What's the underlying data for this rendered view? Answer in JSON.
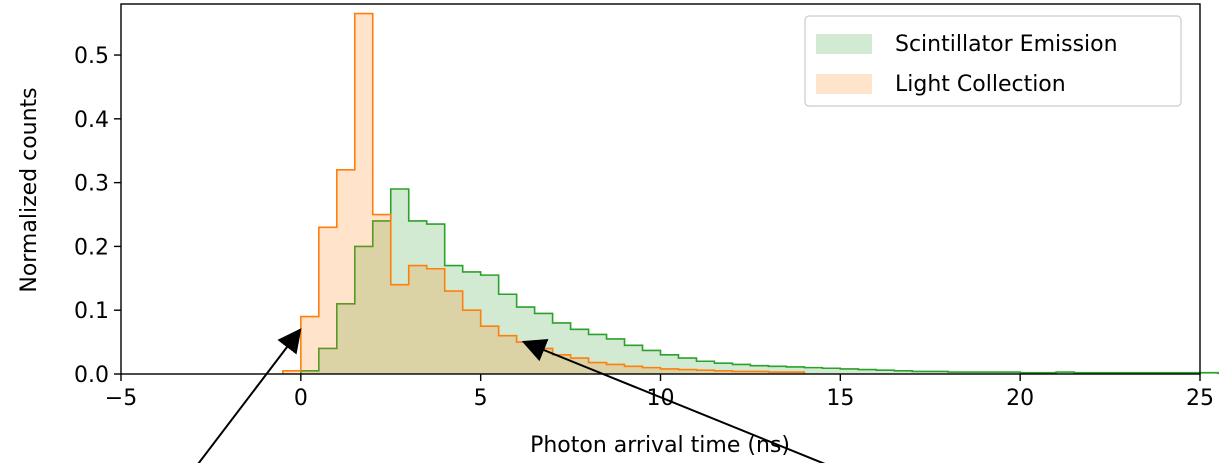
{
  "chart_data": {
    "type": "histogram",
    "xlabel": "Photon arrival time (ns)",
    "ylabel": "Normalized counts",
    "xlim": [
      -5,
      25
    ],
    "ylim": [
      0,
      0.58
    ],
    "xticks": [
      -5,
      0,
      5,
      10,
      15,
      20,
      25
    ],
    "xtick_labels": [
      "−5",
      "0",
      "5",
      "10",
      "15",
      "20",
      "25"
    ],
    "yticks": [
      0.0,
      0.1,
      0.2,
      0.3,
      0.4,
      0.5
    ],
    "ytick_labels": [
      "0.0",
      "0.1",
      "0.2",
      "0.3",
      "0.4",
      "0.5"
    ],
    "bin_width": 0.5,
    "legend_position": "top-right",
    "series": [
      {
        "name": "Scintillator Emission",
        "edge_color": "#2ca02c",
        "fill_color": "#2ca02c",
        "fill_opacity": 0.22,
        "x_start": 0.0,
        "values": [
          0.005,
          0.04,
          0.11,
          0.2,
          0.24,
          0.29,
          0.24,
          0.235,
          0.17,
          0.16,
          0.155,
          0.125,
          0.105,
          0.095,
          0.08,
          0.07,
          0.062,
          0.055,
          0.045,
          0.037,
          0.03,
          0.025,
          0.02,
          0.017,
          0.015,
          0.013,
          0.012,
          0.011,
          0.01,
          0.009,
          0.008,
          0.007,
          0.006,
          0.005,
          0.004,
          0.004,
          0.003,
          0.003,
          0.003,
          0.003,
          0.002,
          0.002,
          0.003,
          0.002,
          0.002,
          0.002,
          0.002,
          0.002,
          0.002,
          0.002,
          0.002,
          0.001,
          0.001,
          0.001,
          0.001,
          0.001,
          0.001,
          0.001,
          0.001,
          0.001,
          0.001,
          0.001,
          0.001,
          0.001,
          0.001,
          0.001,
          0.001,
          0.001,
          0.001
        ]
      },
      {
        "name": "Light Collection",
        "edge_color": "#ff7f0e",
        "fill_color": "#ff7f0e",
        "fill_opacity": 0.22,
        "x_start": -0.5,
        "values": [
          0.005,
          0.09,
          0.23,
          0.32,
          0.565,
          0.25,
          0.14,
          0.17,
          0.165,
          0.13,
          0.1,
          0.075,
          0.06,
          0.05,
          0.04,
          0.03,
          0.025,
          0.018,
          0.015,
          0.012,
          0.01,
          0.008,
          0.007,
          0.006,
          0.005,
          0.004,
          0.004,
          0.003,
          0.003
        ]
      }
    ]
  }
}
